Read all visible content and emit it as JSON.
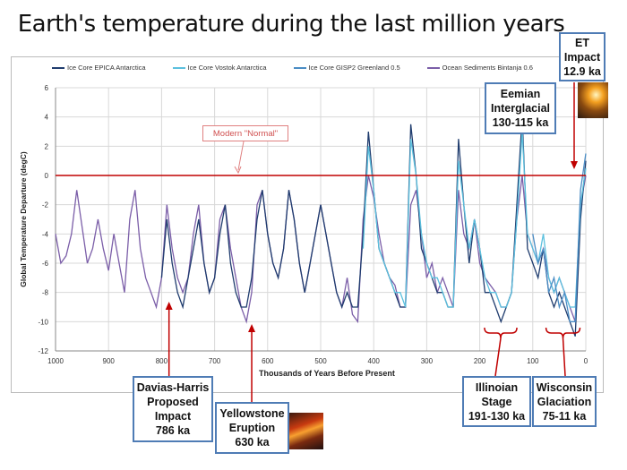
{
  "title": "Earth's temperature during the last million years",
  "annotations": {
    "modern_normal": "Modern \"Normal\"",
    "et_impact": [
      "ET",
      "Impact",
      "12.9 ka"
    ],
    "eemian": [
      "Eemian",
      "Interglacial",
      "130-115 ka"
    ],
    "davias_harris": [
      "Davias-Harris",
      "Proposed",
      "Impact",
      "786 ka"
    ],
    "yellowstone": [
      "Yellowstone",
      "Eruption",
      "630 ka"
    ],
    "illinoian": [
      "Illinoian",
      "Stage",
      "191-130 ka"
    ],
    "wisconsin": [
      "Wisconsin",
      "Glaciation",
      "75-11 ka"
    ],
    "accent_color": "#c00000",
    "box_border_color": "#4f7cb5"
  },
  "chart_data": {
    "type": "line",
    "title": "Earth's temperature during the last million years",
    "xlabel": "Thousands of Years Before Present",
    "ylabel": "Global Temperature Departure (degC)",
    "xlim": [
      1000,
      0
    ],
    "ylim": [
      -12,
      6
    ],
    "x_ticks": [
      "1000",
      "900",
      "800",
      "700",
      "600",
      "500",
      "400",
      "300",
      "200",
      "100",
      "0"
    ],
    "y_ticks": [
      "6",
      "4",
      "2",
      "0",
      "-2",
      "-4",
      "-6",
      "-8",
      "-10",
      "-12"
    ],
    "grid": true,
    "legend_position": "top",
    "reference_line": {
      "y": 0,
      "color": "#c00000"
    },
    "series": [
      {
        "name": "Ice Core EPICA Antarctica",
        "color": "#1f3c6e",
        "points": [
          [
            800,
            -7
          ],
          [
            790,
            -3
          ],
          [
            780,
            -6
          ],
          [
            770,
            -8
          ],
          [
            760,
            -9
          ],
          [
            750,
            -7
          ],
          [
            740,
            -5
          ],
          [
            730,
            -3
          ],
          [
            720,
            -6
          ],
          [
            710,
            -8
          ],
          [
            700,
            -7
          ],
          [
            690,
            -4
          ],
          [
            680,
            -2
          ],
          [
            670,
            -6
          ],
          [
            660,
            -8
          ],
          [
            650,
            -9
          ],
          [
            640,
            -9
          ],
          [
            630,
            -7
          ],
          [
            620,
            -3
          ],
          [
            610,
            -1
          ],
          [
            600,
            -4
          ],
          [
            590,
            -6
          ],
          [
            580,
            -7
          ],
          [
            570,
            -5
          ],
          [
            560,
            -1
          ],
          [
            550,
            -3
          ],
          [
            540,
            -6
          ],
          [
            530,
            -8
          ],
          [
            520,
            -6
          ],
          [
            510,
            -4
          ],
          [
            500,
            -2
          ],
          [
            490,
            -4
          ],
          [
            480,
            -6
          ],
          [
            470,
            -8
          ],
          [
            460,
            -9
          ],
          [
            450,
            -8
          ],
          [
            440,
            -9
          ],
          [
            430,
            -9
          ],
          [
            420,
            -4
          ],
          [
            410,
            3
          ],
          [
            400,
            -1
          ],
          [
            390,
            -5
          ],
          [
            380,
            -6
          ],
          [
            370,
            -7
          ],
          [
            360,
            -8
          ],
          [
            350,
            -9
          ],
          [
            340,
            -9
          ],
          [
            330,
            3.5
          ],
          [
            320,
            0
          ],
          [
            310,
            -5
          ],
          [
            300,
            -6
          ],
          [
            290,
            -7
          ],
          [
            280,
            -8
          ],
          [
            270,
            -8
          ],
          [
            260,
            -9
          ],
          [
            250,
            -9
          ],
          [
            240,
            2.5
          ],
          [
            230,
            -2
          ],
          [
            220,
            -6
          ],
          [
            210,
            -3
          ],
          [
            200,
            -5
          ],
          [
            190,
            -8
          ],
          [
            180,
            -8
          ],
          [
            170,
            -9
          ],
          [
            160,
            -10
          ],
          [
            150,
            -9
          ],
          [
            140,
            -8
          ],
          [
            130,
            -2
          ],
          [
            120,
            4
          ],
          [
            110,
            -5
          ],
          [
            100,
            -6
          ],
          [
            90,
            -7
          ],
          [
            80,
            -5
          ],
          [
            70,
            -8
          ],
          [
            60,
            -9
          ],
          [
            50,
            -8
          ],
          [
            40,
            -9
          ],
          [
            30,
            -10
          ],
          [
            20,
            -11
          ],
          [
            10,
            -3
          ],
          [
            0,
            1
          ]
        ]
      },
      {
        "name": "Ice Core Vostok Antarctica",
        "color": "#5bc0de",
        "points": [
          [
            420,
            -5
          ],
          [
            410,
            2
          ],
          [
            400,
            -1
          ],
          [
            390,
            -5
          ],
          [
            380,
            -6
          ],
          [
            370,
            -7
          ],
          [
            360,
            -8
          ],
          [
            350,
            -8
          ],
          [
            340,
            -9
          ],
          [
            330,
            2.5
          ],
          [
            320,
            0
          ],
          [
            310,
            -4
          ],
          [
            300,
            -6
          ],
          [
            290,
            -7
          ],
          [
            280,
            -7
          ],
          [
            270,
            -8
          ],
          [
            260,
            -9
          ],
          [
            250,
            -9
          ],
          [
            240,
            1
          ],
          [
            230,
            -2
          ],
          [
            220,
            -5
          ],
          [
            210,
            -3
          ],
          [
            200,
            -5
          ],
          [
            190,
            -7
          ],
          [
            180,
            -8
          ],
          [
            170,
            -8
          ],
          [
            160,
            -9
          ],
          [
            150,
            -9
          ],
          [
            140,
            -8
          ],
          [
            130,
            -3
          ],
          [
            120,
            3
          ],
          [
            110,
            -4
          ],
          [
            100,
            -5
          ],
          [
            90,
            -6
          ],
          [
            80,
            -4
          ],
          [
            70,
            -7
          ],
          [
            60,
            -8
          ],
          [
            50,
            -7
          ],
          [
            40,
            -8
          ],
          [
            30,
            -9
          ],
          [
            20,
            -9
          ],
          [
            10,
            -2
          ],
          [
            0,
            0.5
          ]
        ]
      },
      {
        "name": "Ice Core GISP2 Greenland 0.5",
        "color": "#4a8cc4",
        "points": [
          [
            100,
            -4
          ],
          [
            90,
            -6
          ],
          [
            80,
            -5
          ],
          [
            70,
            -8
          ],
          [
            60,
            -7
          ],
          [
            50,
            -9
          ],
          [
            40,
            -8
          ],
          [
            30,
            -10
          ],
          [
            20,
            -10
          ],
          [
            10,
            -1
          ],
          [
            0,
            1.5
          ]
        ]
      },
      {
        "name": "Ocean Sediments Bintanja 0.6",
        "color": "#7b5ea8",
        "points": [
          [
            1000,
            -4
          ],
          [
            990,
            -6
          ],
          [
            980,
            -5.5
          ],
          [
            970,
            -4
          ],
          [
            960,
            -1
          ],
          [
            950,
            -3.5
          ],
          [
            940,
            -6
          ],
          [
            930,
            -5
          ],
          [
            920,
            -3
          ],
          [
            910,
            -5
          ],
          [
            900,
            -6.5
          ],
          [
            890,
            -4
          ],
          [
            880,
            -6
          ],
          [
            870,
            -8
          ],
          [
            860,
            -3
          ],
          [
            850,
            -1
          ],
          [
            840,
            -5
          ],
          [
            830,
            -7
          ],
          [
            820,
            -8
          ],
          [
            810,
            -9
          ],
          [
            800,
            -7
          ],
          [
            790,
            -2
          ],
          [
            780,
            -5
          ],
          [
            770,
            -7
          ],
          [
            760,
            -8
          ],
          [
            750,
            -7
          ],
          [
            740,
            -4
          ],
          [
            730,
            -2
          ],
          [
            720,
            -6
          ],
          [
            710,
            -8
          ],
          [
            700,
            -7
          ],
          [
            690,
            -3
          ],
          [
            680,
            -2
          ],
          [
            670,
            -5
          ],
          [
            660,
            -7
          ],
          [
            650,
            -9
          ],
          [
            640,
            -10
          ],
          [
            630,
            -8
          ],
          [
            620,
            -2
          ],
          [
            610,
            -1
          ],
          [
            600,
            -4
          ],
          [
            590,
            -6
          ],
          [
            580,
            -7
          ],
          [
            570,
            -5
          ],
          [
            560,
            -1
          ],
          [
            550,
            -3
          ],
          [
            540,
            -6
          ],
          [
            530,
            -8
          ],
          [
            520,
            -6
          ],
          [
            510,
            -4
          ],
          [
            500,
            -2
          ],
          [
            490,
            -4
          ],
          [
            480,
            -6
          ],
          [
            470,
            -8
          ],
          [
            460,
            -9
          ],
          [
            450,
            -7
          ],
          [
            440,
            -9.5
          ],
          [
            430,
            -10
          ],
          [
            420,
            -3
          ],
          [
            410,
            0
          ],
          [
            400,
            -1.5
          ],
          [
            390,
            -4
          ],
          [
            380,
            -6
          ],
          [
            370,
            -7
          ],
          [
            360,
            -7.5
          ],
          [
            350,
            -9
          ],
          [
            340,
            -9
          ],
          [
            330,
            -2
          ],
          [
            320,
            -1
          ],
          [
            310,
            -4
          ],
          [
            300,
            -7
          ],
          [
            290,
            -6
          ],
          [
            280,
            -8
          ],
          [
            270,
            -7
          ],
          [
            260,
            -8
          ],
          [
            250,
            -9
          ],
          [
            240,
            -1
          ],
          [
            230,
            -4
          ],
          [
            220,
            -5
          ],
          [
            210,
            -3
          ],
          [
            200,
            -6
          ],
          [
            190,
            -7
          ],
          [
            180,
            -7.5
          ],
          [
            170,
            -8
          ],
          [
            160,
            -9
          ],
          [
            150,
            -9
          ],
          [
            140,
            -8
          ],
          [
            130,
            -3
          ],
          [
            120,
            0
          ],
          [
            110,
            -4
          ],
          [
            100,
            -5
          ],
          [
            90,
            -6
          ],
          [
            80,
            -5
          ],
          [
            70,
            -7
          ],
          [
            60,
            -8
          ],
          [
            50,
            -7
          ],
          [
            40,
            -8
          ],
          [
            30,
            -9
          ],
          [
            20,
            -10
          ],
          [
            10,
            -2
          ],
          [
            0,
            0
          ]
        ]
      }
    ]
  }
}
